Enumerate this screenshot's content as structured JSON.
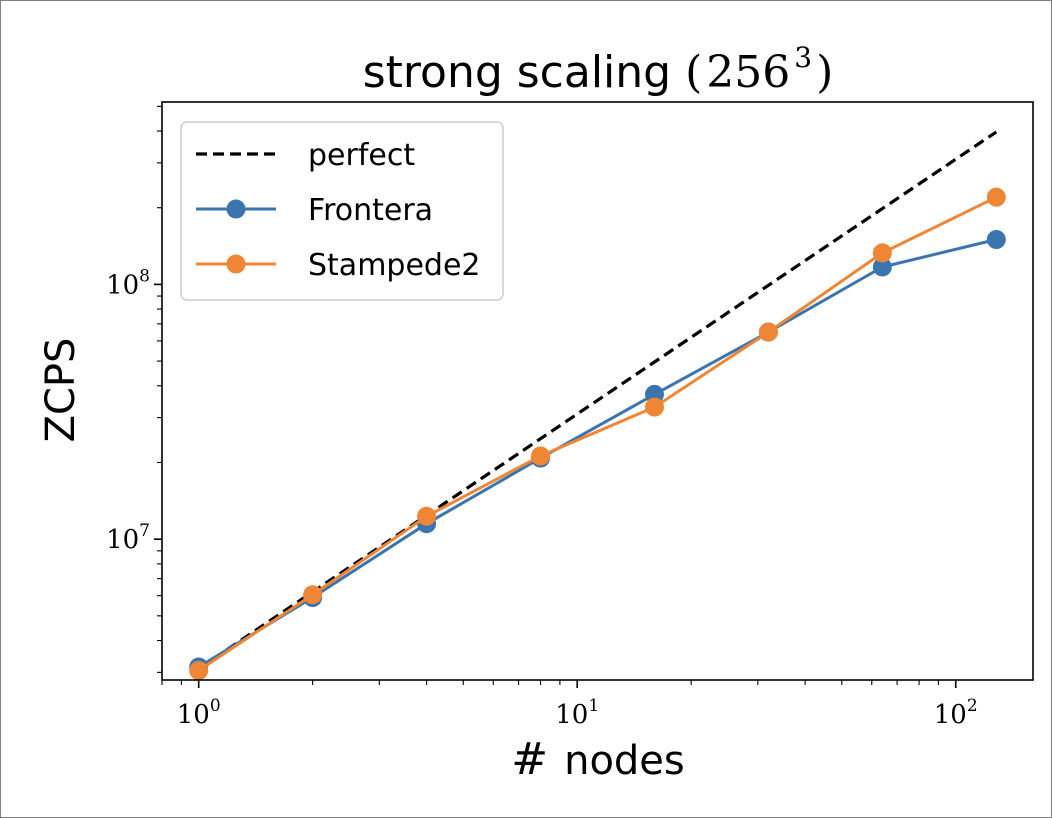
{
  "chart_data": {
    "type": "line",
    "title": {
      "text": "strong scaling",
      "math_base": "256",
      "math_exponent": "3",
      "open_paren": "(",
      "close_paren": ")"
    },
    "xlabel": {
      "symbol": "#",
      "text": "nodes"
    },
    "ylabel": "ZCPS",
    "x_scale": "log",
    "y_scale": "log",
    "xlim": [
      0.8,
      160
    ],
    "ylim": [
      2800000,
      520000000
    ],
    "x_ticks": [
      {
        "value": 1,
        "base": "10",
        "exp": "0"
      },
      {
        "value": 10,
        "base": "10",
        "exp": "1"
      },
      {
        "value": 100,
        "base": "10",
        "exp": "2"
      }
    ],
    "y_ticks": [
      {
        "value": 10000000,
        "base": "10",
        "exp": "7"
      },
      {
        "value": 100000000,
        "base": "10",
        "exp": "8"
      }
    ],
    "grid": false,
    "legend_position": "top-left",
    "x": [
      1,
      2,
      4,
      8,
      16,
      32,
      64,
      128
    ],
    "series": [
      {
        "name": "perfect",
        "style": "dashed",
        "color": "#000000",
        "markers": false,
        "values": [
          3100000,
          6200000,
          12400000,
          24800000,
          49600000,
          99200000,
          198400000,
          396800000
        ]
      },
      {
        "name": "Frontera",
        "style": "solid",
        "color": "#3b75af",
        "markers": true,
        "values": [
          3150000,
          5900000,
          11500000,
          20800000,
          37000000,
          65000000,
          117000000,
          150000000
        ]
      },
      {
        "name": "Stampede2",
        "style": "solid",
        "color": "#ef8636",
        "markers": true,
        "values": [
          3050000,
          6050000,
          12300000,
          21200000,
          33000000,
          65000000,
          133000000,
          220000000
        ]
      }
    ]
  }
}
